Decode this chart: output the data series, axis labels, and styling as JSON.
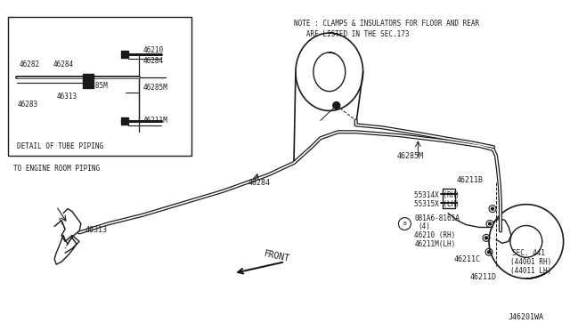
{
  "bg_color": "#ffffff",
  "line_color": "#1a1a1a",
  "note_text1": "NOTE : CLAMPS & INSULATORS FOR FLOOR AND REAR",
  "note_text2": "   ARE LISTED IN THE SEC.173",
  "watermark": "J46201WA"
}
